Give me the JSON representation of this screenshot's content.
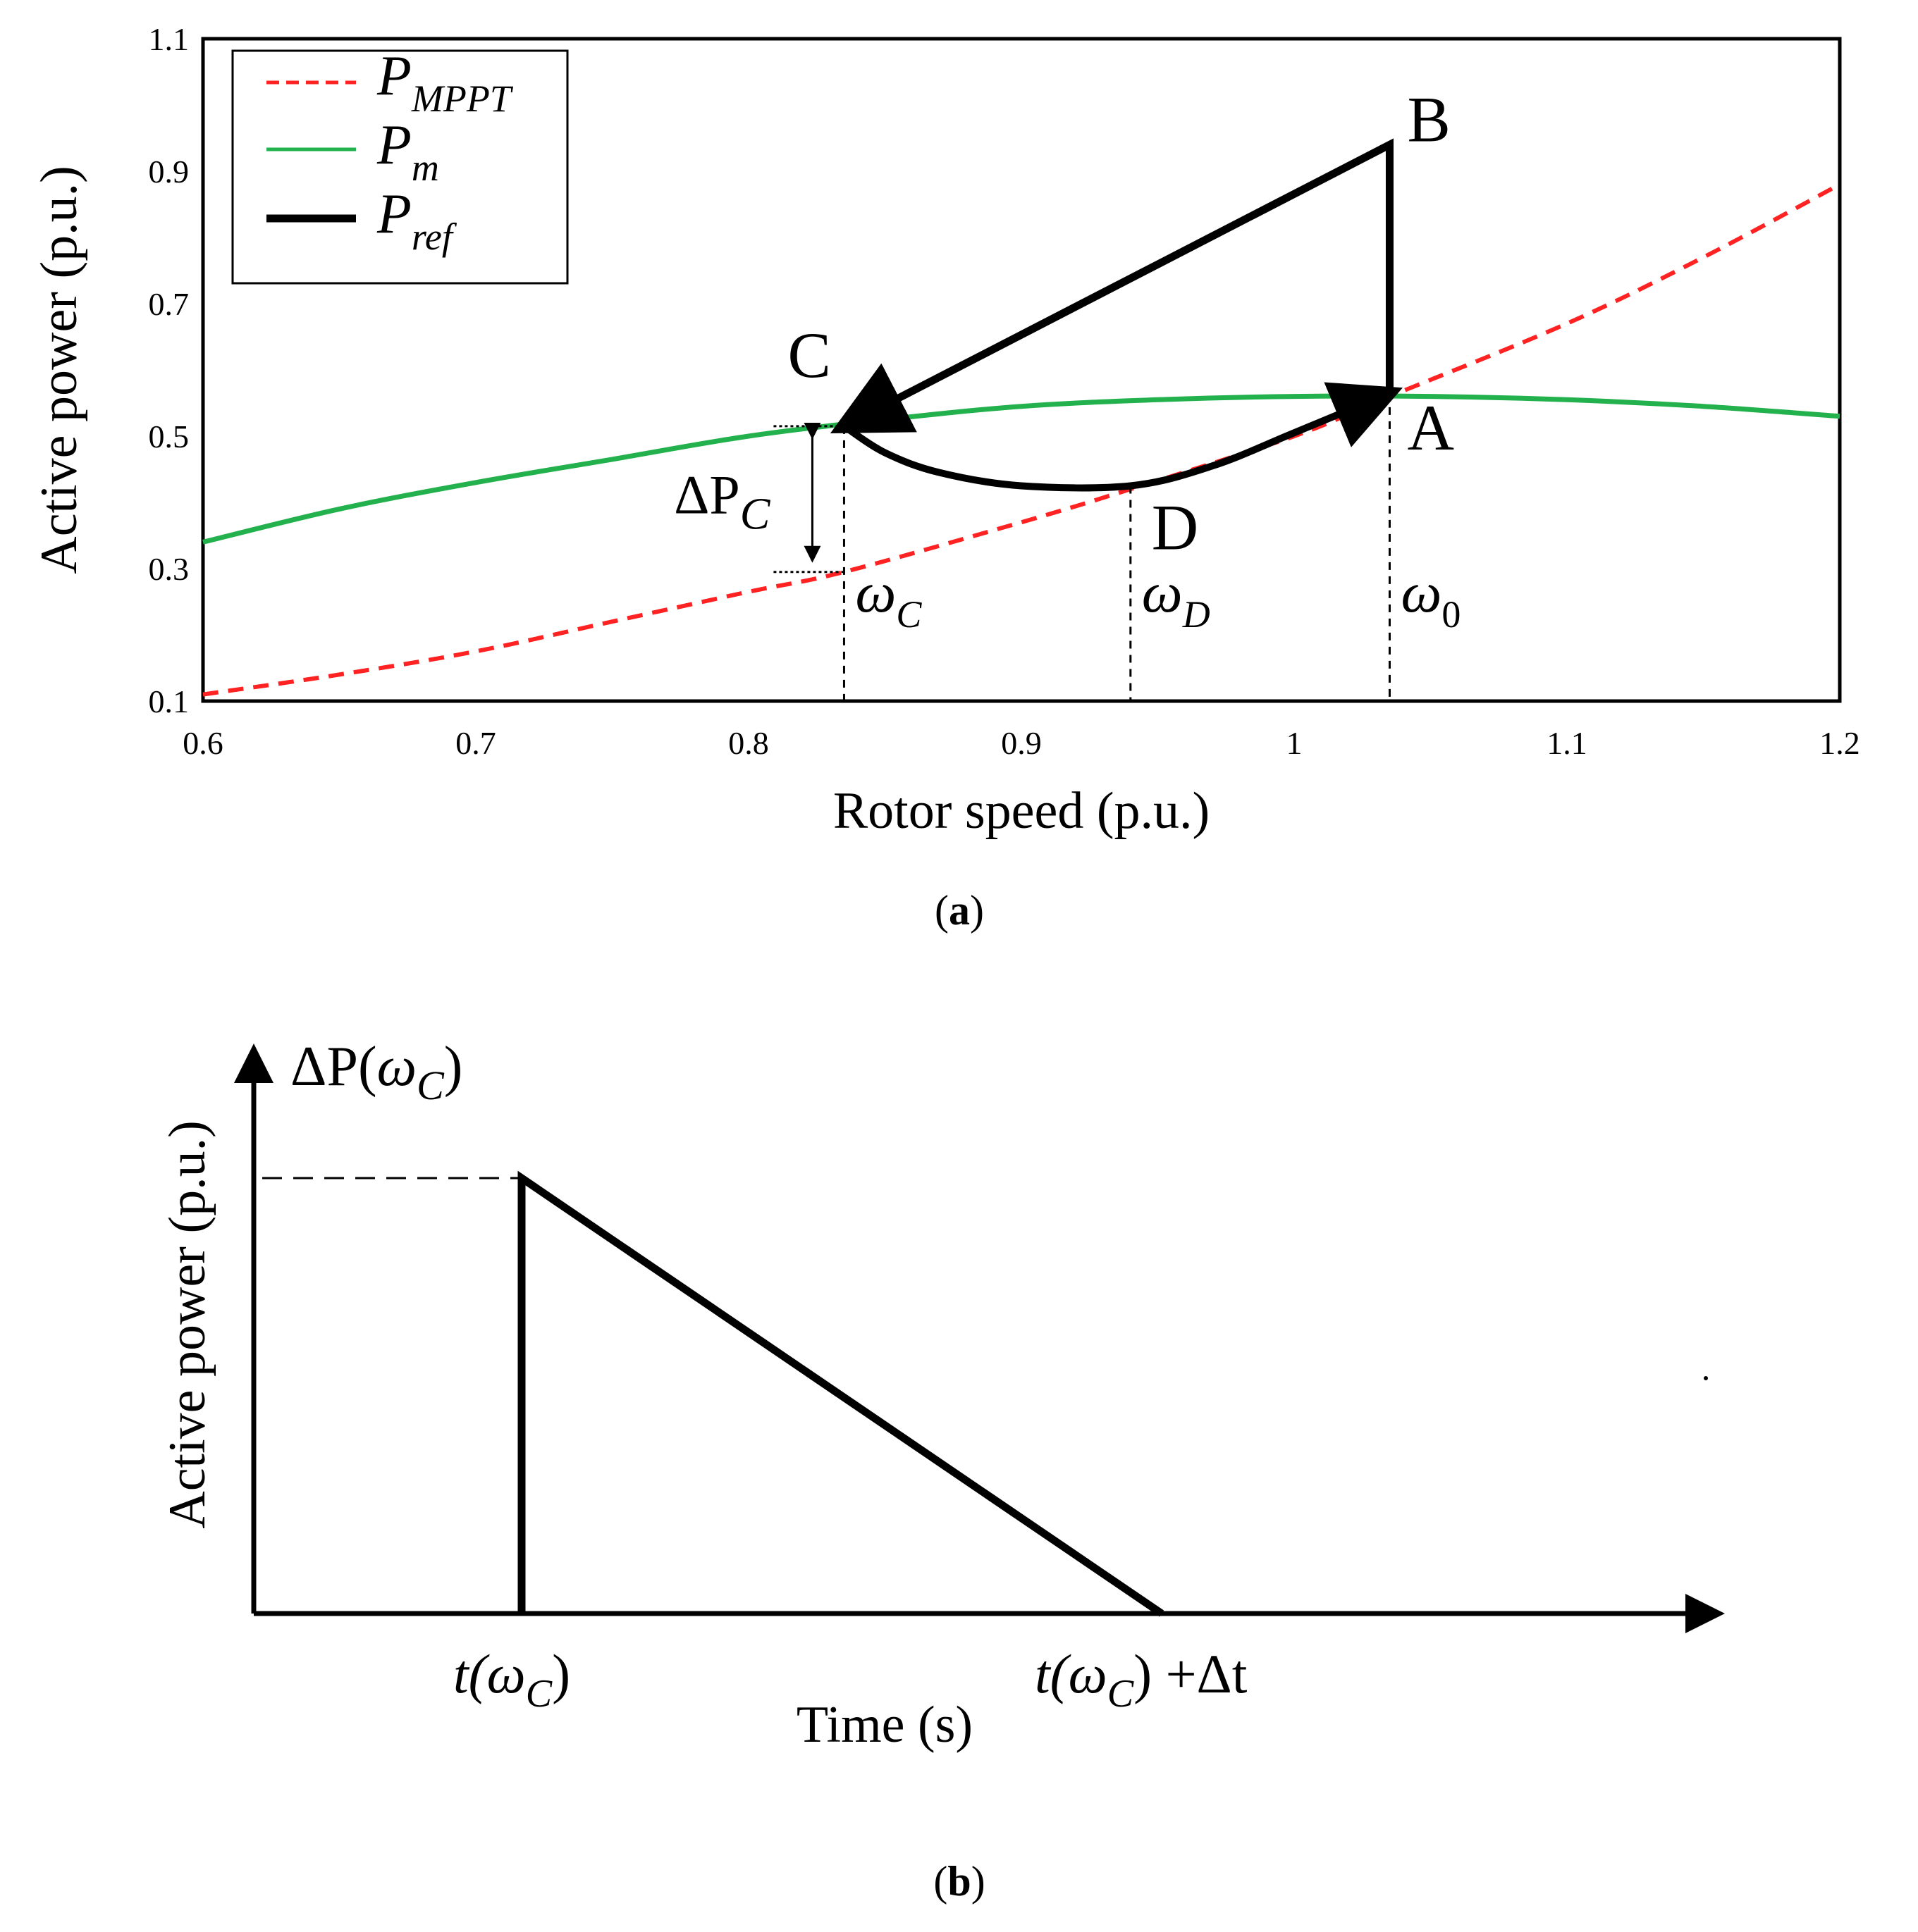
{
  "colors": {
    "mppt": "#ff2222",
    "pm": "#22b14c",
    "pref": "#000000"
  },
  "chart_data": [
    {
      "id": "a",
      "type": "line",
      "caption": "a",
      "xlabel": "Rotor speed (p.u.)",
      "ylabel": "Active power (p.u.)",
      "xlim": [
        0.6,
        1.2
      ],
      "ylim": [
        0.1,
        1.1
      ],
      "xticks": [
        "0.6",
        "0.7",
        "0.8",
        "0.9",
        "1",
        "1.1",
        "1.2"
      ],
      "yticks": [
        "0.1",
        "0.3",
        "0.5",
        "0.7",
        "0.9",
        "1.1"
      ],
      "legend": {
        "placement": "top-left",
        "entries": [
          {
            "base": "P",
            "sub": "MPPT",
            "style": "dashed"
          },
          {
            "base": "P",
            "sub": "m",
            "style": "solid"
          },
          {
            "base": "P",
            "sub": "ref",
            "style": "thick"
          }
        ]
      },
      "series": [
        {
          "name": "P_MPPT",
          "x": [
            0.6,
            0.65,
            0.7,
            0.75,
            0.8,
            0.835,
            0.9,
            0.94,
            1.0,
            1.035,
            1.1,
            1.15,
            1.2
          ],
          "y": [
            0.11,
            0.14,
            0.175,
            0.22,
            0.265,
            0.295,
            0.37,
            0.42,
            0.5,
            0.56,
            0.67,
            0.77,
            0.88
          ]
        },
        {
          "name": "P_m",
          "x": [
            0.6,
            0.65,
            0.7,
            0.75,
            0.8,
            0.85,
            0.9,
            0.95,
            1.0,
            1.05,
            1.1,
            1.15,
            1.2
          ],
          "y": [
            0.34,
            0.39,
            0.43,
            0.465,
            0.5,
            0.525,
            0.545,
            0.555,
            0.56,
            0.56,
            0.555,
            0.545,
            0.53
          ]
        },
        {
          "name": "P_ref",
          "x": [
            1.035,
            1.035,
            0.835,
            0.85,
            0.87,
            0.9,
            0.94,
            0.97,
            1.0,
            1.035
          ],
          "y": [
            0.565,
            0.94,
            0.515,
            0.475,
            0.445,
            0.425,
            0.425,
            0.455,
            0.505,
            0.565
          ]
        }
      ],
      "points": [
        {
          "label": "A",
          "x": 1.035,
          "y": 0.565
        },
        {
          "label": "B",
          "x": 1.035,
          "y": 0.94
        },
        {
          "label": "C",
          "x": 0.835,
          "y": 0.515
        },
        {
          "label": "D",
          "x": 0.94,
          "y": 0.425
        }
      ],
      "markers": [
        {
          "base": "ω",
          "sub": "C",
          "x": 0.835
        },
        {
          "base": "ω",
          "sub": "D",
          "x": 0.94
        },
        {
          "base": "ω",
          "sub": "0",
          "x": 1.035
        }
      ],
      "delta_annotation": {
        "base": "ΔP",
        "sub": "C",
        "x": 0.835,
        "y_from": 0.295,
        "y_to": 0.515
      }
    },
    {
      "id": "b",
      "type": "line",
      "caption": "b",
      "xlabel": "Time (s)",
      "ylabel": "Active power (p.u.)",
      "peak_label": {
        "pre": "ΔP(",
        "base": "ω",
        "sub": "C",
        "post": ")"
      },
      "x_labels": [
        {
          "pre": "t(",
          "base": "ω",
          "sub": "C",
          "post": ")"
        },
        {
          "pre": "t(",
          "base": "ω",
          "sub": "C",
          "post": ") +Δt"
        }
      ],
      "series": [
        {
          "name": "ΔP",
          "x": [
            0,
            0,
            1
          ],
          "y": [
            0,
            1,
            0
          ]
        }
      ]
    }
  ]
}
